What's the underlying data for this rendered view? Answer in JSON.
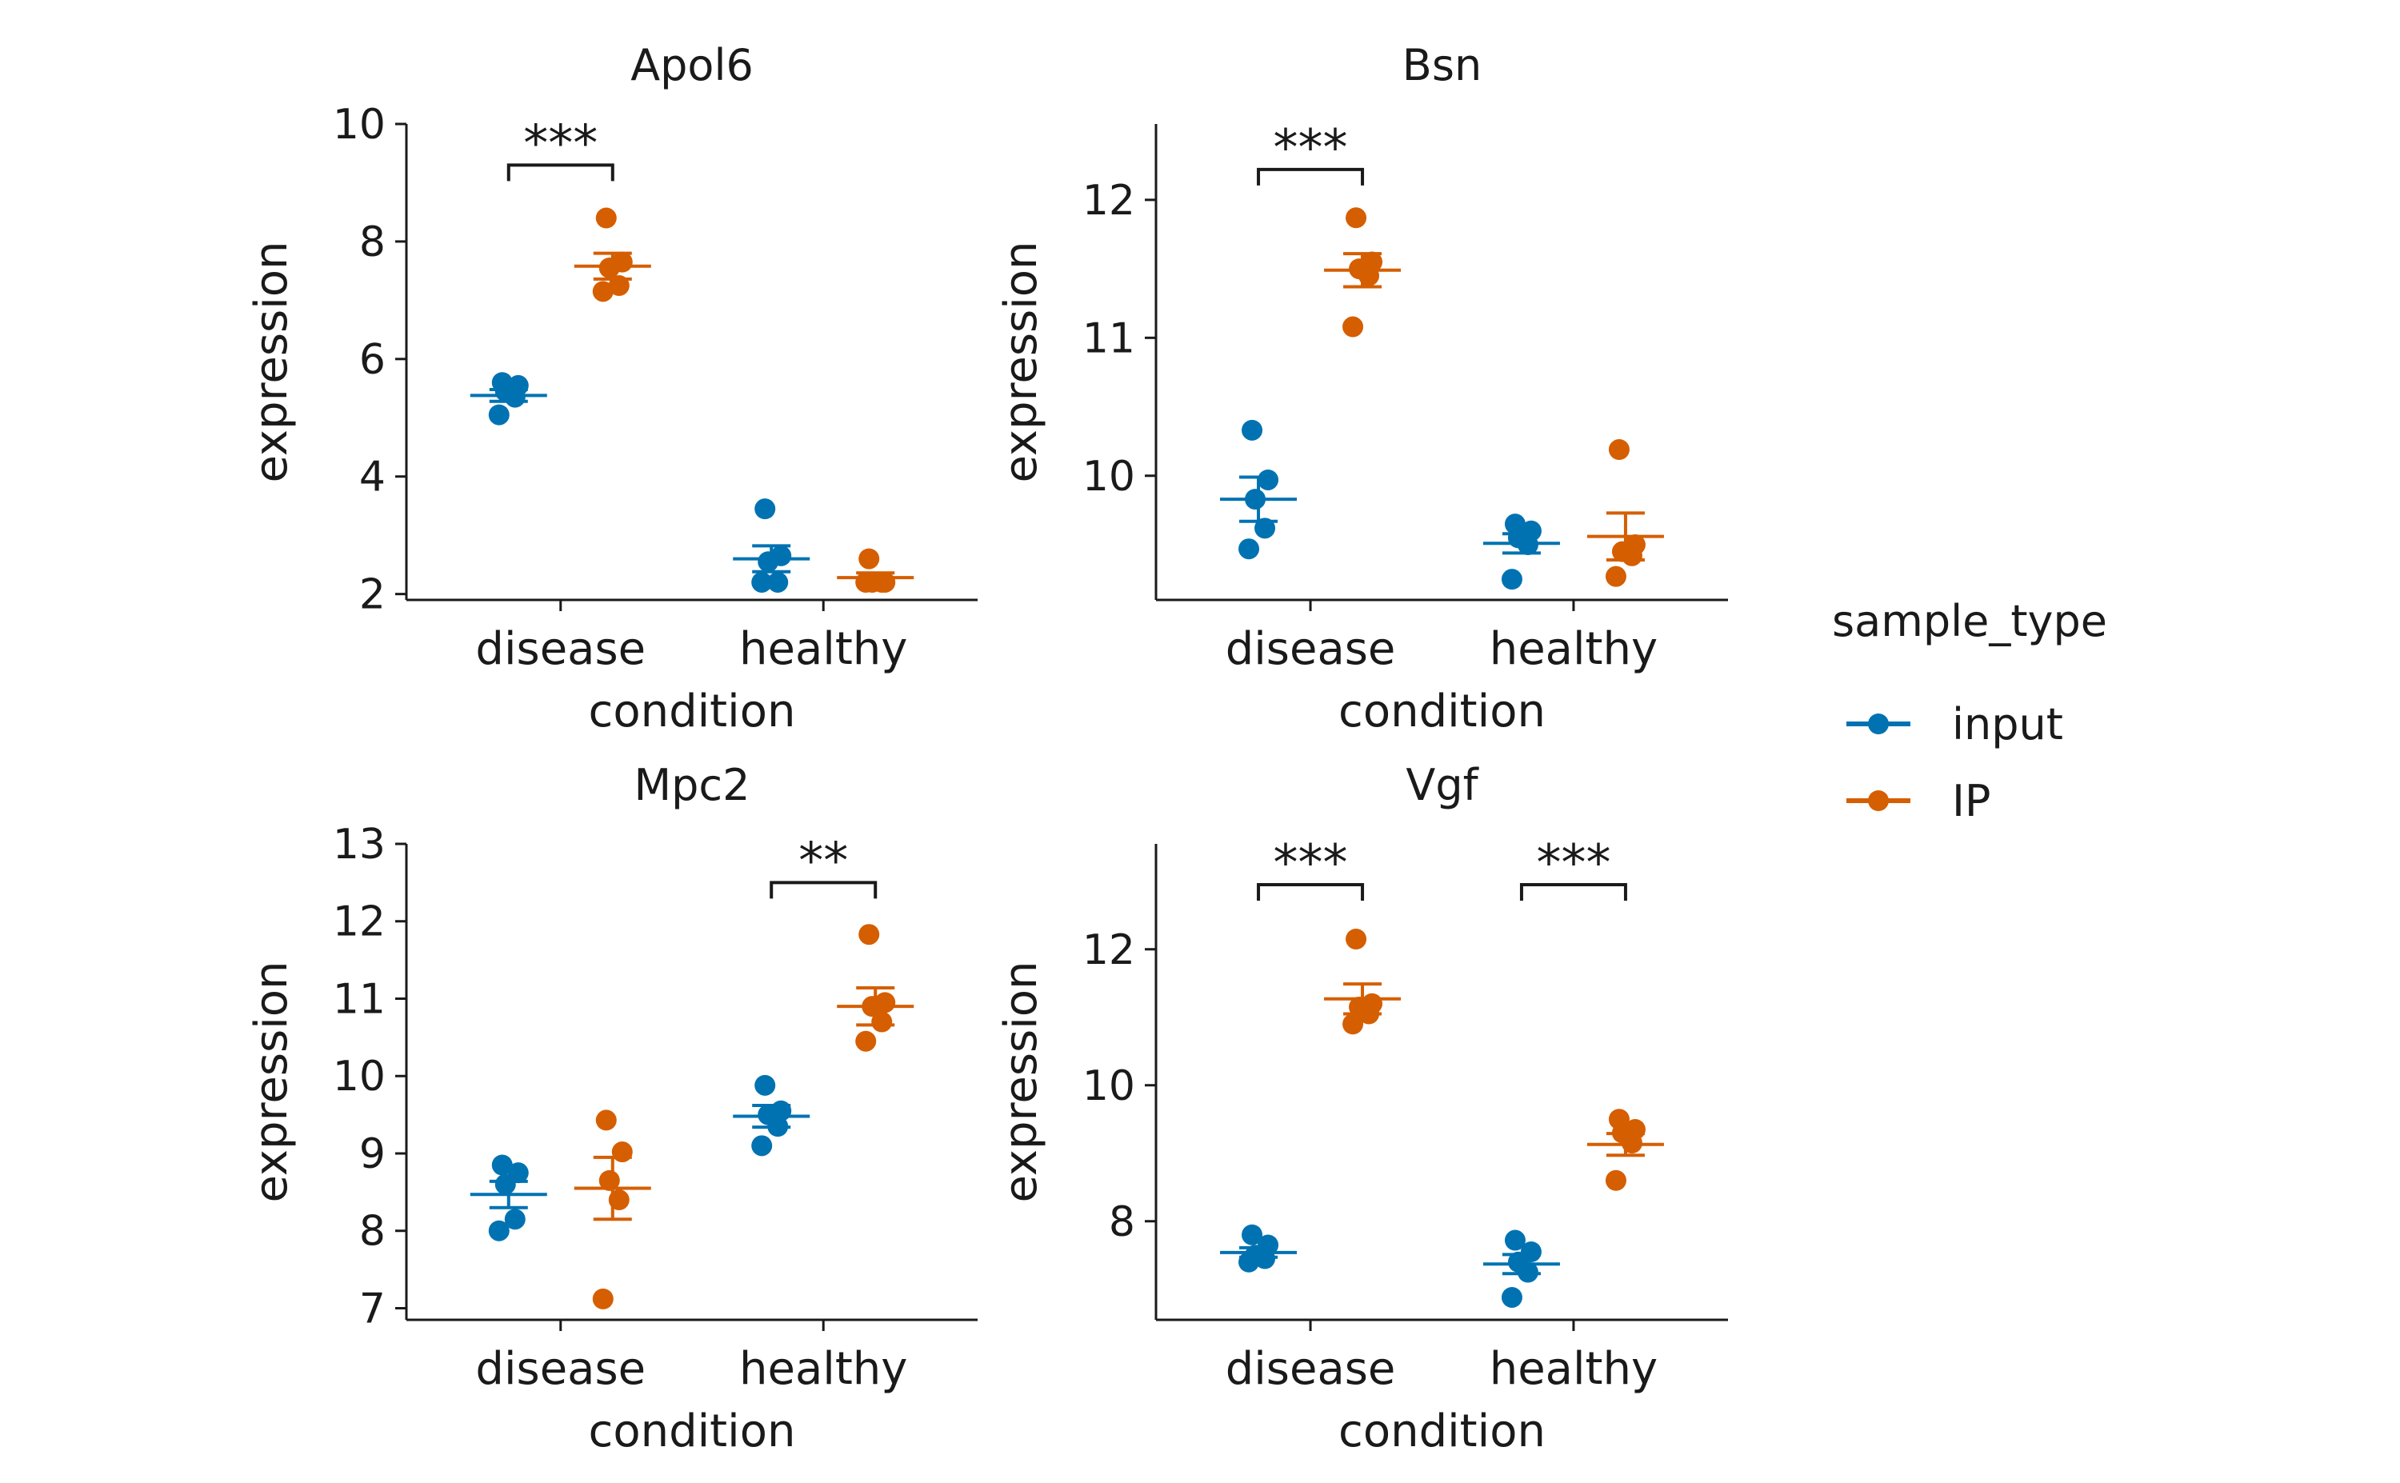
{
  "chart_data": [
    {
      "type": "scatter",
      "title": "Apol6",
      "xlabel": "condition",
      "ylabel": "expression",
      "categories": [
        "disease",
        "healthy"
      ],
      "ylim": [
        1.9,
        10.0
      ],
      "yticks": [
        2,
        4,
        6,
        8,
        10
      ],
      "series": [
        {
          "name": "input",
          "points": [
            [
              5.05,
              5.35,
              5.45,
              5.55,
              5.6
            ],
            [
              2.2,
              2.2,
              2.55,
              2.65,
              3.45
            ]
          ],
          "mean": [
            5.38,
            2.6
          ],
          "sem": [
            0.1,
            0.22
          ]
        },
        {
          "name": "IP",
          "points": [
            [
              7.15,
              7.25,
              7.55,
              7.65,
              8.4
            ],
            [
              2.2,
              2.2,
              2.2,
              2.2,
              2.6
            ]
          ],
          "mean": [
            7.58,
            2.28
          ],
          "sem": [
            0.22,
            0.08
          ]
        }
      ],
      "significance": [
        {
          "category": "disease",
          "label": "***",
          "y": 9.3
        }
      ]
    },
    {
      "type": "scatter",
      "title": "Bsn",
      "xlabel": "condition",
      "ylabel": "expression",
      "categories": [
        "disease",
        "healthy"
      ],
      "ylim": [
        9.1,
        12.55
      ],
      "yticks": [
        10,
        11,
        12
      ],
      "series": [
        {
          "name": "input",
          "points": [
            [
              9.47,
              9.62,
              9.83,
              9.97,
              10.33
            ],
            [
              9.25,
              9.5,
              9.55,
              9.6,
              9.65
            ]
          ],
          "mean": [
            9.83,
            9.51
          ],
          "sem": [
            0.16,
            0.07
          ]
        },
        {
          "name": "IP",
          "points": [
            [
              11.08,
              11.45,
              11.5,
              11.55,
              11.87
            ],
            [
              9.27,
              9.42,
              9.45,
              9.5,
              10.19
            ]
          ],
          "mean": [
            11.49,
            9.56
          ],
          "sem": [
            0.12,
            0.17
          ]
        }
      ],
      "significance": [
        {
          "category": "disease",
          "label": "***",
          "y": 12.22
        }
      ]
    },
    {
      "type": "scatter",
      "title": "Mpc2",
      "xlabel": "condition",
      "ylabel": "expression",
      "categories": [
        "disease",
        "healthy"
      ],
      "ylim": [
        6.85,
        13.0
      ],
      "yticks": [
        7,
        8,
        9,
        10,
        11,
        12,
        13
      ],
      "series": [
        {
          "name": "input",
          "points": [
            [
              8.0,
              8.15,
              8.6,
              8.75,
              8.85
            ],
            [
              9.1,
              9.35,
              9.5,
              9.55,
              9.88
            ]
          ],
          "mean": [
            8.47,
            9.48
          ],
          "sem": [
            0.17,
            0.14
          ]
        },
        {
          "name": "IP",
          "points": [
            [
              7.12,
              8.4,
              8.65,
              9.02,
              9.43
            ],
            [
              10.45,
              10.7,
              10.9,
              10.95,
              11.83
            ]
          ],
          "mean": [
            8.55,
            10.9
          ],
          "sem": [
            0.4,
            0.24
          ]
        }
      ],
      "significance": [
        {
          "category": "healthy",
          "label": "**",
          "y": 12.5
        }
      ]
    },
    {
      "type": "scatter",
      "title": "Vgf",
      "xlabel": "condition",
      "ylabel": "expression",
      "categories": [
        "disease",
        "healthy"
      ],
      "ylim": [
        6.55,
        13.55
      ],
      "yticks": [
        8,
        10,
        12
      ],
      "series": [
        {
          "name": "input",
          "points": [
            [
              7.4,
              7.45,
              7.5,
              7.65,
              7.8
            ],
            [
              6.88,
              7.25,
              7.4,
              7.55,
              7.72
            ]
          ],
          "mean": [
            7.54,
            7.37
          ],
          "sem": [
            0.07,
            0.14
          ]
        },
        {
          "name": "IP",
          "points": [
            [
              10.9,
              11.05,
              11.15,
              11.2,
              12.15
            ],
            [
              8.6,
              9.15,
              9.3,
              9.35,
              9.5
            ]
          ],
          "mean": [
            11.27,
            9.13
          ],
          "sem": [
            0.22,
            0.16
          ]
        }
      ],
      "significance": [
        {
          "category": "disease",
          "label": "***",
          "y": 12.95
        },
        {
          "category": "healthy",
          "label": "***",
          "y": 12.95
        }
      ]
    }
  ],
  "legend": {
    "title": "sample_type",
    "position": "right",
    "items": [
      {
        "label": "input",
        "color": "#0072B2"
      },
      {
        "label": "IP",
        "color": "#D55E00"
      }
    ]
  }
}
